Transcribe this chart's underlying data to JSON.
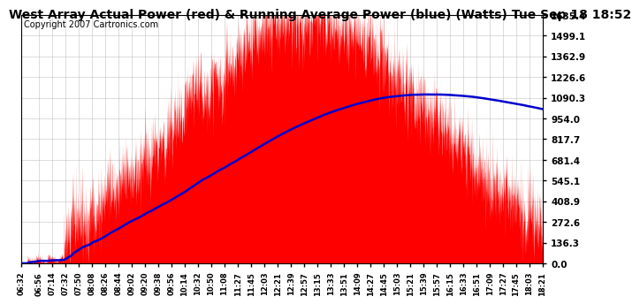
{
  "title": "West Array Actual Power (red) & Running Average Power (blue) (Watts) Tue Sep 18 18:52",
  "copyright": "Copyright 2007 Cartronics.com",
  "y_tick_labels": [
    "0.0",
    "136.3",
    "272.6",
    "408.9",
    "545.1",
    "681.4",
    "817.7",
    "954.0",
    "1090.3",
    "1226.6",
    "1362.9",
    "1499.1",
    "1635.4"
  ],
  "y_tick_values": [
    0.0,
    136.3,
    272.6,
    408.9,
    545.1,
    681.4,
    817.7,
    954.0,
    1090.3,
    1226.6,
    1362.9,
    1499.1,
    1635.4
  ],
  "x_tick_labels": [
    "06:32",
    "06:56",
    "07:14",
    "07:32",
    "07:50",
    "08:08",
    "08:26",
    "08:44",
    "09:02",
    "09:20",
    "09:38",
    "09:56",
    "10:14",
    "10:32",
    "10:50",
    "11:08",
    "11:27",
    "11:45",
    "12:03",
    "12:21",
    "12:39",
    "12:57",
    "13:15",
    "13:33",
    "13:51",
    "14:09",
    "14:27",
    "14:45",
    "15:03",
    "15:21",
    "15:39",
    "15:57",
    "16:15",
    "16:33",
    "16:51",
    "17:09",
    "17:27",
    "17:45",
    "18:03",
    "18:21"
  ],
  "ylim": [
    0.0,
    1635.4
  ],
  "background_color": "#ffffff",
  "plot_bg_color": "#ffffff",
  "grid_color": "#aaaaaa",
  "actual_color": "#ff0000",
  "avg_color": "#0000cc",
  "title_fontsize": 10,
  "copyright_fontsize": 7,
  "peak_t_hours": 13.0,
  "sigma_hours": 2.8,
  "max_power": 1635.4,
  "avg_peak_value": 1090.0,
  "avg_peak_time_hours": 14.75
}
